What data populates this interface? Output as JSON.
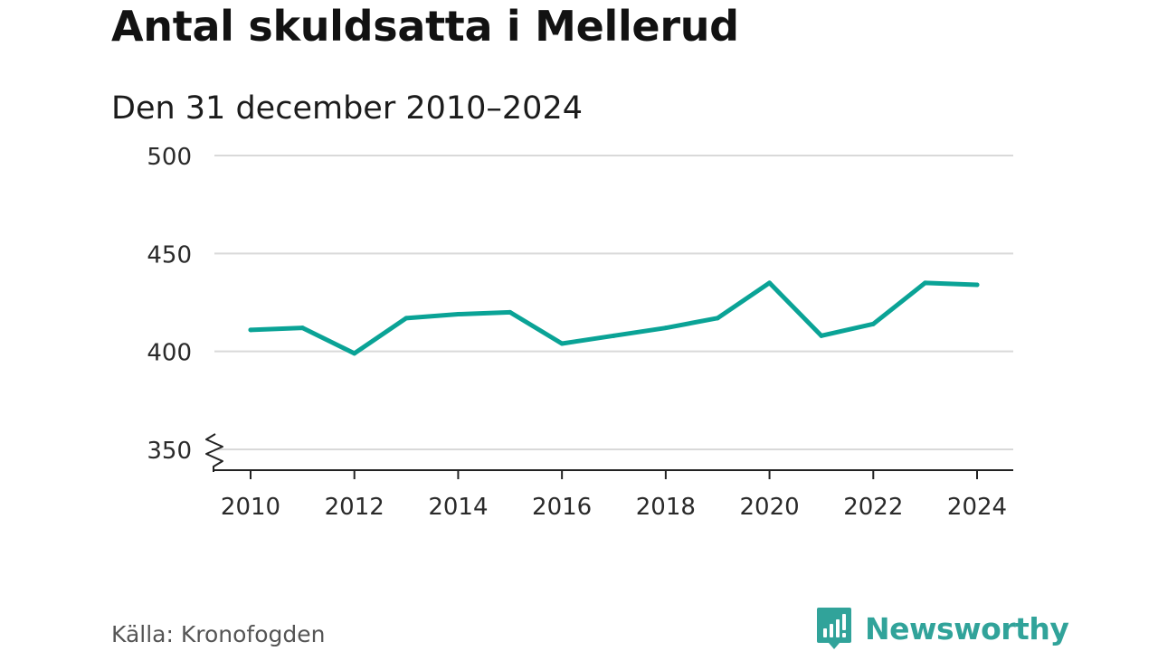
{
  "header": {
    "title": "Antal skuldsatta i Mellerud",
    "subtitle": "Den 31 december 2010–2024"
  },
  "footer": {
    "source": "Källa: Kronofogden",
    "brand": "Newsworthy"
  },
  "colors": {
    "line": "#0aa396",
    "grid": "#d9d9d9",
    "axis": "#222222",
    "brand": "#31a39a"
  },
  "chart_data": {
    "type": "line",
    "title": "Antal skuldsatta i Mellerud",
    "subtitle": "Den 31 december 2010–2024",
    "xlabel": "",
    "ylabel": "",
    "x": [
      2010,
      2011,
      2012,
      2013,
      2014,
      2015,
      2016,
      2017,
      2018,
      2019,
      2020,
      2021,
      2022,
      2023,
      2024
    ],
    "series": [
      {
        "name": "Antal skuldsatta",
        "values": [
          411,
          412,
          399,
          417,
          419,
          420,
          404,
          408,
          412,
          417,
          435,
          408,
          414,
          435,
          434
        ]
      }
    ],
    "xticks": [
      "2010",
      "2012",
      "2014",
      "2016",
      "2018",
      "2020",
      "2022",
      "2024"
    ],
    "yticks": [
      "350",
      "400",
      "450",
      "500"
    ],
    "ylim": [
      350,
      500
    ],
    "xlim": [
      2010,
      2024
    ],
    "grid": true,
    "axis_break": true,
    "source": "Källa: Kronofogden"
  }
}
